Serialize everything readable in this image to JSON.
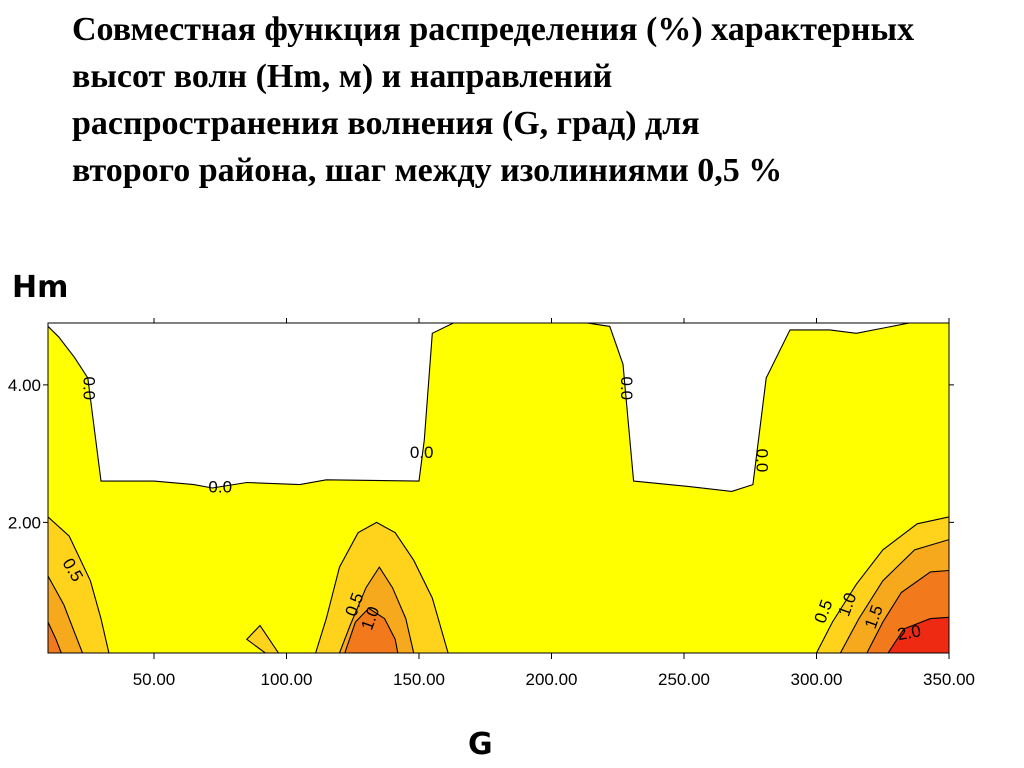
{
  "title_lines": [
    "Совместная функция распределения (%) характерных",
    "высот волн (Hm, м) и направлений",
    "распространения волнения (G, град) для",
    "второго района, шаг между изолиниями 0,5 %"
  ],
  "colors": {
    "background": "#ffffff",
    "level_0": "#ffff00",
    "level_0_5": "#ffd21c",
    "level_1_0": "#f7a91e",
    "level_1_5": "#f27a1c",
    "level_2_0": "#ee2b12",
    "isoline": "#000000"
  },
  "chart_data": {
    "type": "contour",
    "title": "Совместная функция распределения (%) характерных высот волн (Hm, м) и направлений распространения волнения (G, град) для второго района, шаг между изолиниями 0,5 %",
    "xlabel": "G",
    "ylabel": "Hm",
    "xlim": [
      10,
      350
    ],
    "ylim": [
      0.1,
      4.9
    ],
    "xticks": [
      "50.00",
      "100.00",
      "150.00",
      "200.00",
      "250.00",
      "300.00",
      "350.00"
    ],
    "xtick_values": [
      50,
      100,
      150,
      200,
      250,
      300,
      350
    ],
    "yticks": [
      "2.00",
      "4.00"
    ],
    "ytick_values": [
      2,
      4
    ],
    "grid": false,
    "contour_step": 0.5,
    "levels": [
      0.0,
      0.5,
      1.0,
      1.5,
      2.0
    ],
    "isolines": [
      {
        "level": 0.0,
        "label": "0.0",
        "label_positions": [
          [
            25,
            3.95
          ],
          [
            75,
            2.5
          ],
          [
            151,
            3.0
          ],
          [
            228,
            3.95
          ],
          [
            279,
            2.9
          ]
        ],
        "points": [
          [
            10,
            4.85
          ],
          [
            14,
            4.7
          ],
          [
            20,
            4.4
          ],
          [
            25,
            4.1
          ],
          [
            30,
            2.6
          ],
          [
            50,
            2.6
          ],
          [
            65,
            2.55
          ],
          [
            72,
            2.5
          ],
          [
            85,
            2.58
          ],
          [
            105,
            2.55
          ],
          [
            115,
            2.62
          ],
          [
            150,
            2.6
          ],
          [
            152,
            3.2
          ],
          [
            155,
            4.75
          ],
          [
            163,
            4.9
          ],
          [
            175,
            4.95
          ],
          [
            190,
            4.9
          ],
          [
            210,
            4.92
          ],
          [
            222,
            4.85
          ],
          [
            227,
            4.3
          ],
          [
            231,
            2.6
          ],
          [
            252,
            2.52
          ],
          [
            268,
            2.45
          ],
          [
            276,
            2.55
          ],
          [
            281,
            4.1
          ],
          [
            290,
            4.8
          ],
          [
            305,
            4.8
          ],
          [
            315,
            4.75
          ],
          [
            335,
            4.9
          ],
          [
            350,
            4.92
          ]
        ]
      },
      {
        "level": 0.5,
        "label": "0.5",
        "label_positions": [
          [
            19,
            1.3
          ],
          [
            126,
            0.8
          ],
          [
            303,
            0.7
          ]
        ],
        "segments": [
          [
            [
              10,
              2.08
            ],
            [
              18,
              1.8
            ],
            [
              26,
              1.15
            ],
            [
              30,
              0.6
            ],
            [
              33,
              0.1
            ]
          ],
          [
            [
              111,
              0.1
            ],
            [
              115,
              0.6
            ],
            [
              120,
              1.35
            ],
            [
              127,
              1.85
            ],
            [
              134,
              2.0
            ],
            [
              141,
              1.85
            ],
            [
              148,
              1.45
            ],
            [
              155,
              0.9
            ],
            [
              161,
              0.1
            ]
          ],
          [
            [
              92,
              0.1
            ],
            [
              85,
              0.3
            ],
            [
              90,
              0.5
            ],
            [
              97,
              0.1
            ]
          ],
          [
            [
              300,
              0.1
            ],
            [
              306,
              0.55
            ],
            [
              315,
              1.1
            ],
            [
              325,
              1.6
            ],
            [
              338,
              1.98
            ],
            [
              350,
              2.08
            ]
          ]
        ]
      },
      {
        "level": 1.0,
        "label": "1.0",
        "label_positions": [
          [
            132,
            0.6
          ],
          [
            312,
            0.8
          ]
        ],
        "segments": [
          [
            [
              10,
              1.22
            ],
            [
              16,
              0.8
            ],
            [
              20,
              0.4
            ],
            [
              23,
              0.1
            ]
          ],
          [
            [
              120,
              0.1
            ],
            [
              124,
              0.5
            ],
            [
              130,
              1.05
            ],
            [
              135,
              1.35
            ],
            [
              140,
              1.05
            ],
            [
              145,
              0.6
            ],
            [
              148,
              0.1
            ]
          ],
          [
            [
              309,
              0.1
            ],
            [
              316,
              0.6
            ],
            [
              325,
              1.15
            ],
            [
              337,
              1.6
            ],
            [
              350,
              1.75
            ]
          ]
        ]
      },
      {
        "level": 1.5,
        "label": "1.5",
        "label_positions": [
          [
            322,
            0.62
          ]
        ],
        "segments": [
          [
            [
              10,
              0.55
            ],
            [
              13,
              0.3
            ],
            [
              15,
              0.1
            ]
          ],
          [
            [
              122,
              0.1
            ],
            [
              126,
              0.55
            ],
            [
              131,
              0.75
            ],
            [
              137,
              0.6
            ],
            [
              141,
              0.3
            ],
            [
              142,
              0.1
            ]
          ],
          [
            [
              319,
              0.1
            ],
            [
              325,
              0.55
            ],
            [
              332,
              0.98
            ],
            [
              343,
              1.28
            ],
            [
              350,
              1.3
            ]
          ]
        ]
      },
      {
        "level": 2.0,
        "label": "2.0",
        "label_positions": [
          [
            335,
            0.38
          ]
        ],
        "segments": [
          [
            [
              327,
              0.1
            ],
            [
              333,
              0.45
            ],
            [
              343,
              0.6
            ],
            [
              350,
              0.62
            ]
          ]
        ]
      }
    ]
  },
  "axis_labels": {
    "y": "Hm",
    "x": "G"
  }
}
